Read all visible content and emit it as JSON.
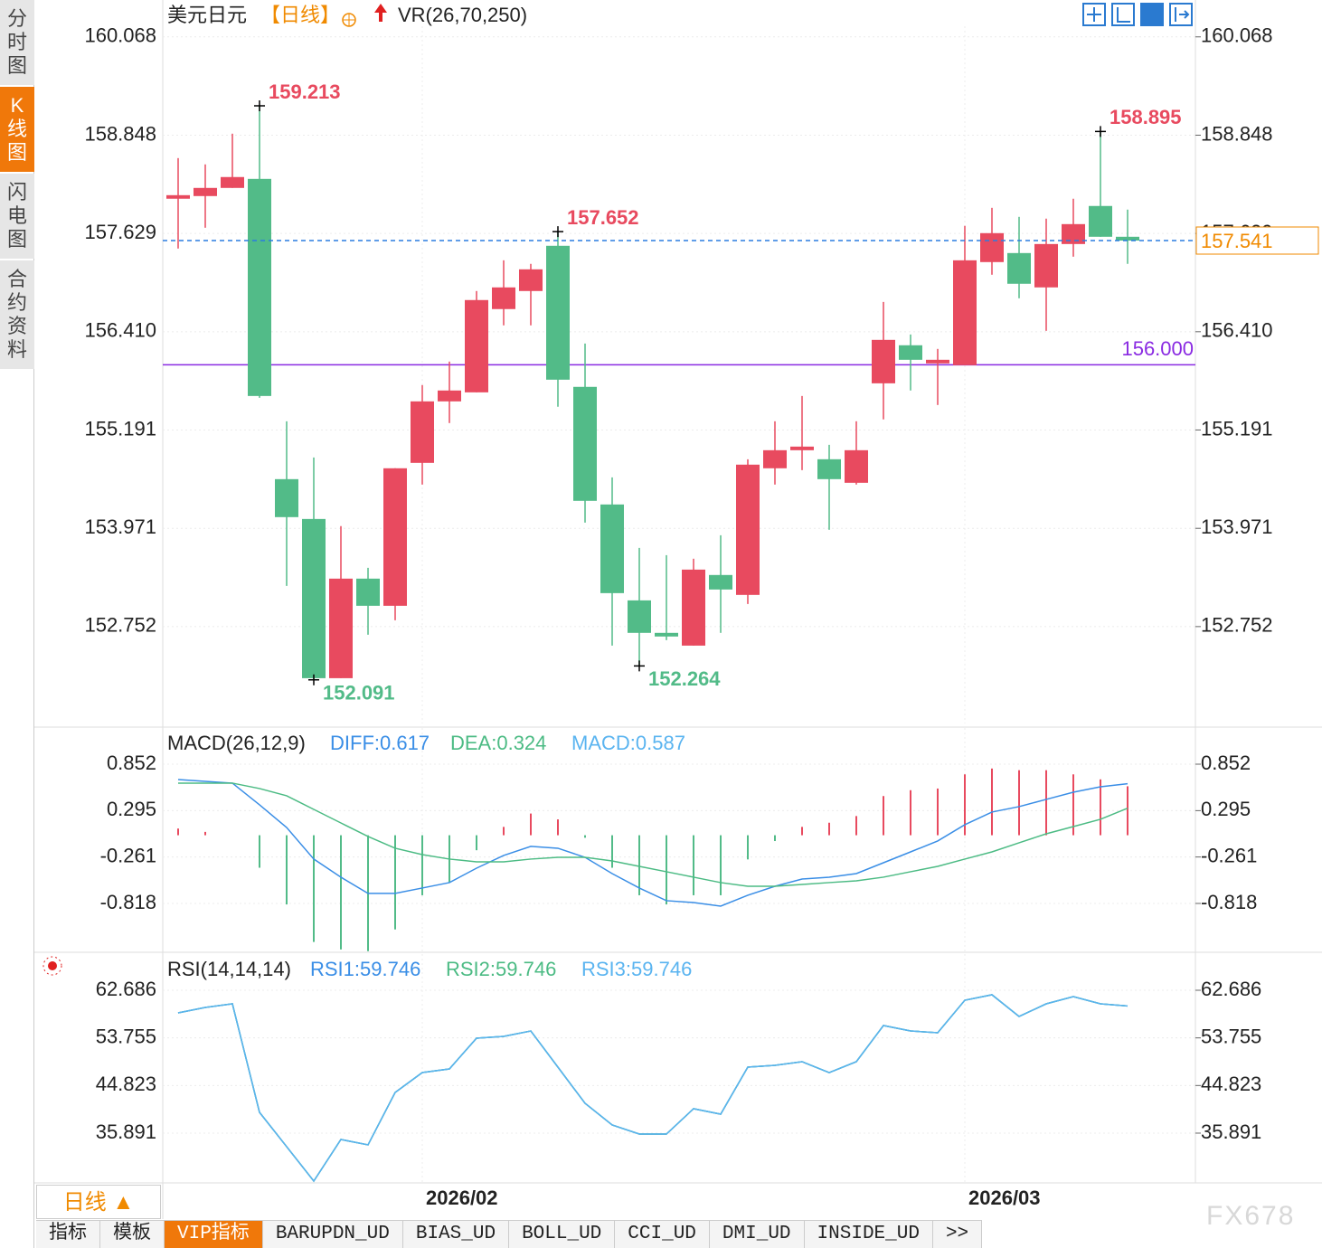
{
  "sidebar": [
    "分时图",
    "K线图",
    "闪电图",
    "合约资料"
  ],
  "chart_data": [
    {
      "type": "candlestick",
      "title": "美元日元",
      "period": "【日线】",
      "indicator": "VR(26,70,250)",
      "categories": [
        null,
        null,
        null,
        null,
        null,
        null,
        null,
        null,
        null,
        "2026/02",
        null,
        null,
        null,
        null,
        null,
        null,
        null,
        null,
        null,
        null,
        null,
        null,
        null,
        null,
        null,
        null,
        null,
        null,
        null,
        "2026/03",
        null,
        null,
        null,
        null,
        null,
        null
      ],
      "open": [
        158.06,
        158.093,
        158.194,
        158.306,
        154.581,
        154.087,
        152.112,
        153.347,
        153.01,
        154.783,
        155.546,
        155.658,
        156.691,
        156.915,
        157.476,
        155.726,
        154.267,
        153.077,
        152.674,
        152.516,
        153.392,
        153.145,
        154.716,
        154.94,
        154.828,
        154.536,
        155.77,
        156.242,
        156.017,
        155.995,
        157.274,
        157.386,
        156.96,
        157.498,
        157.97,
        157.588
      ],
      "high": [
        158.564,
        158.486,
        158.867,
        159.213,
        155.299,
        154.85,
        153.998,
        153.481,
        154.716,
        155.748,
        156.04,
        156.915,
        157.296,
        157.252,
        157.652,
        156.264,
        154.603,
        153.728,
        153.638,
        153.594,
        153.885,
        154.828,
        155.299,
        155.613,
        155.007,
        155.299,
        156.78,
        156.376,
        156.197,
        157.723,
        157.947,
        157.835,
        157.813,
        158.06,
        158.895,
        157.925
      ],
      "low": [
        157.442,
        157.7,
        158.194,
        155.591,
        153.257,
        152.091,
        152.112,
        152.651,
        152.831,
        154.514,
        155.277,
        155.658,
        156.489,
        156.489,
        155.479,
        154.042,
        152.516,
        152.264,
        152.584,
        152.516,
        152.674,
        153.033,
        154.514,
        154.693,
        153.953,
        154.514,
        155.322,
        155.681,
        155.501,
        155.995,
        157.117,
        156.825,
        156.421,
        157.341,
        157.588,
        157.252
      ],
      "close": [
        158.104,
        158.194,
        158.329,
        155.613,
        154.11,
        152.112,
        153.347,
        153.01,
        154.716,
        155.546,
        155.681,
        156.803,
        156.96,
        157.184,
        155.815,
        154.312,
        153.167,
        152.674,
        152.629,
        153.459,
        153.212,
        154.761,
        154.94,
        154.985,
        154.581,
        154.94,
        156.309,
        156.062,
        156.062,
        157.296,
        157.633,
        157.005,
        157.498,
        157.745,
        157.588,
        157.541
      ],
      "up_color": "#e84a5f",
      "down_color": "#52bb88",
      "ylim": [
        151.55,
        160.2
      ],
      "yticks": [
        160.068,
        158.848,
        157.629,
        {
          "value": 156.41,
          "label": "156.410"
        },
        155.191,
        153.971,
        152.752
      ],
      "grid": true,
      "last_price": 157.541,
      "level_line": {
        "value": 156,
        "label": "156.000",
        "color": "#8a2be2"
      },
      "high_low_labels": [
        159.213,
        157.652,
        152.091,
        152.264,
        158.895
      ]
    },
    {
      "type": "macd",
      "title": "MACD(26,12,9)",
      "series": [
        {
          "name": "DIFF:0.617",
          "color": "#3a8ee6",
          "values": [
            0.668,
            0.646,
            0.625,
            0.365,
            0.093,
            -0.286,
            -0.503,
            -0.698,
            -0.698,
            -0.633,
            -0.568,
            -0.395,
            -0.243,
            -0.134,
            -0.156,
            -0.265,
            -0.46,
            -0.633,
            -0.785,
            -0.807,
            -0.85,
            -0.72,
            -0.612,
            -0.525,
            -0.503,
            -0.46,
            -0.33,
            -0.2,
            -0.069,
            0.126,
            0.278,
            0.343,
            0.43,
            0.516,
            0.581,
            0.617
          ]
        },
        {
          "name": "DEA:0.324",
          "color": "#4cbb84",
          "values": [
            0.625,
            0.625,
            0.625,
            0.56,
            0.473,
            0.31,
            0.147,
            -0.015,
            -0.156,
            -0.232,
            -0.286,
            -0.319,
            -0.319,
            -0.286,
            -0.265,
            -0.265,
            -0.308,
            -0.373,
            -0.438,
            -0.503,
            -0.568,
            -0.612,
            -0.612,
            -0.59,
            -0.568,
            -0.547,
            -0.503,
            -0.438,
            -0.373,
            -0.286,
            -0.2,
            -0.091,
            0.017,
            0.104,
            0.191,
            0.324
          ]
        },
        {
          "name": "MACD:0.587",
          "color": "#5ab4f0",
          "style": "histogram",
          "up_color": "#e84a5f",
          "down_color": "#52bb88",
          "values": [
            0.08,
            0.04,
            0,
            -0.39,
            -0.83,
            -1.28,
            -1.37,
            -1.39,
            -1.13,
            -0.72,
            -0.57,
            -0.18,
            0.1,
            0.26,
            0.19,
            -0.03,
            -0.39,
            -0.72,
            -0.83,
            -0.72,
            -0.72,
            -0.29,
            -0.07,
            0.1,
            0.15,
            0.23,
            0.47,
            0.54,
            0.56,
            0.73,
            0.8,
            0.78,
            0.78,
            0.73,
            0.67,
            0.587
          ]
        }
      ],
      "ylim": [
        -1.393,
        1.286
      ],
      "yticks": [
        0.852,
        0.295,
        -0.261,
        -0.818
      ],
      "grid": true
    },
    {
      "type": "line",
      "title": "RSI(14,14,14)",
      "series": [
        {
          "name": "RSI1:59.746",
          "color": "#3a8ee6",
          "values": [
            58.45,
            59.46,
            60.14,
            39.79,
            33.35,
            26.9,
            34.7,
            33.69,
            43.52,
            47.25,
            47.93,
            53.7,
            54.04,
            55.05,
            48.27,
            41.49,
            37.42,
            35.72,
            35.72,
            40.47,
            39.45,
            48.27,
            48.61,
            49.29,
            47.25,
            49.29,
            56.07,
            55.05,
            54.72,
            60.82,
            61.84,
            57.77,
            60.14,
            61.5,
            60.14,
            59.746
          ]
        },
        {
          "name": "RSI2:59.746",
          "color": "#4cbb84",
          "values": [
            58.45,
            59.46,
            60.14,
            39.79,
            33.35,
            26.9,
            34.7,
            33.69,
            43.52,
            47.25,
            47.93,
            53.7,
            54.04,
            55.05,
            48.27,
            41.49,
            37.42,
            35.72,
            35.72,
            40.47,
            39.45,
            48.27,
            48.61,
            49.29,
            47.25,
            49.29,
            56.07,
            55.05,
            54.72,
            60.82,
            61.84,
            57.77,
            60.14,
            61.5,
            60.14,
            59.746
          ]
        },
        {
          "name": "RSI3:59.746",
          "color": "#5ab4f0",
          "values": [
            58.45,
            59.46,
            60.14,
            39.79,
            33.35,
            26.9,
            34.7,
            33.69,
            43.52,
            47.25,
            47.93,
            53.7,
            54.04,
            55.05,
            48.27,
            41.49,
            37.42,
            35.72,
            35.72,
            40.47,
            39.45,
            48.27,
            48.61,
            49.29,
            47.25,
            49.29,
            56.07,
            55.05,
            54.72,
            60.82,
            61.84,
            57.77,
            60.14,
            61.5,
            60.14,
            59.746
          ]
        }
      ],
      "ylim": [
        26.56,
        69.47
      ],
      "yticks": [
        62.686,
        53.755,
        44.823,
        35.891
      ],
      "grid": true
    }
  ],
  "footer": {
    "period": "日线",
    "tabs": [
      "指标",
      "模板",
      "VIP指标",
      "BARUPDN_UD",
      "BIAS_UD",
      "BOLL_UD",
      "CCI_UD",
      "DMI_UD",
      "INSIDE_UD",
      ">>"
    ],
    "watermark": "FX678"
  }
}
